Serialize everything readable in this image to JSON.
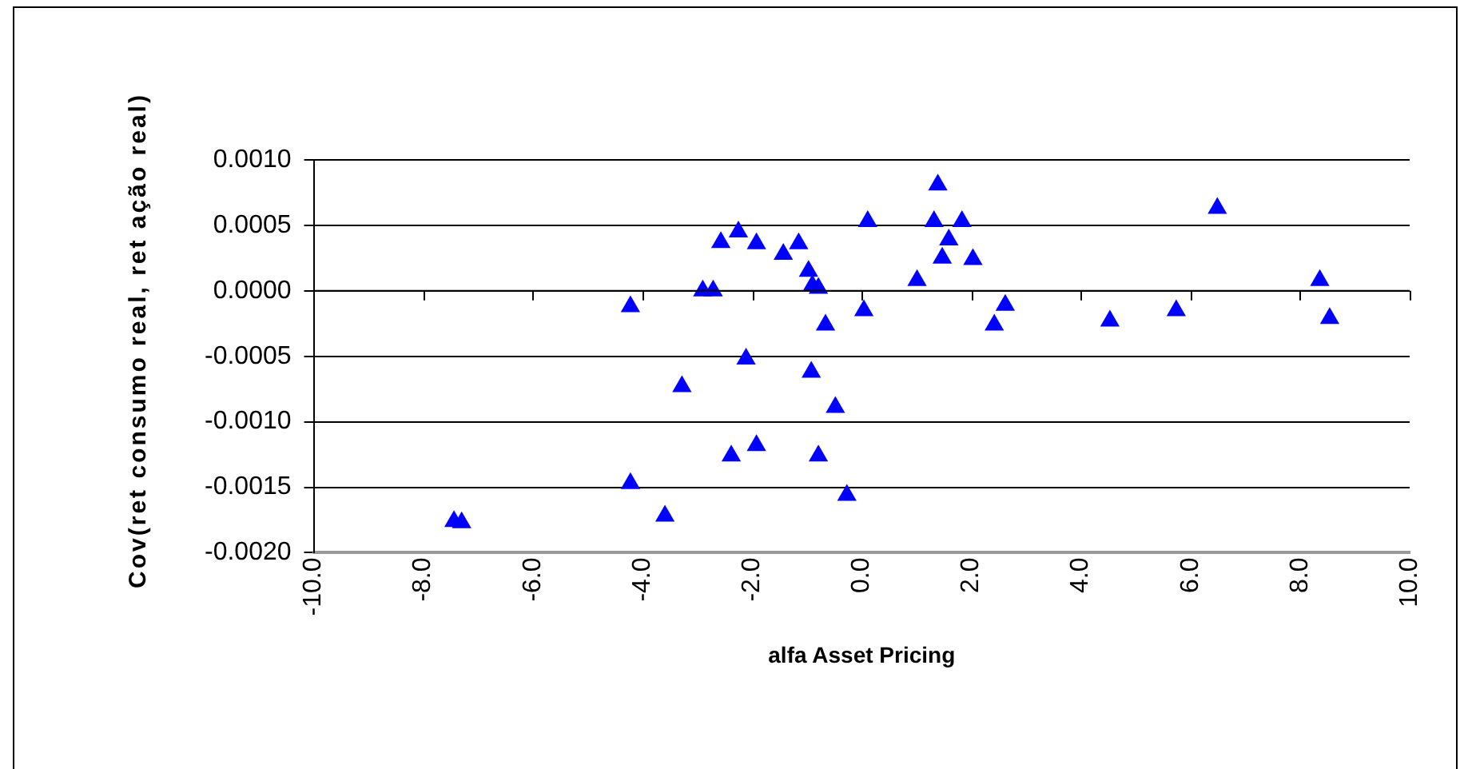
{
  "chart_data": {
    "type": "scatter",
    "xlabel": "alfa Asset Pricing",
    "ylabel": "Cov(ret consumo real, ret ação real)",
    "series": [
      {
        "color": "#0000ff",
        "x": [
          -7.44,
          -7.3,
          -4.22,
          -4.22,
          -3.59,
          -3.28,
          -2.9,
          -2.71,
          -2.57,
          -2.25,
          -2.38,
          -2.11,
          -1.92,
          -1.92,
          -1.43,
          -1.15,
          -0.97,
          -0.9,
          -0.79,
          -0.92,
          -0.79,
          -0.66,
          -0.48,
          -0.27,
          0.04,
          0.11,
          1.01,
          1.32,
          1.39,
          1.47,
          1.59,
          1.83,
          2.03,
          2.42,
          2.62,
          4.53,
          5.74,
          6.49,
          8.36,
          8.54
        ],
        "values": [
          -0.00176,
          -0.00177,
          -0.00012,
          -0.00147,
          -0.00172,
          -0.00073,
          0.0,
          0.0,
          0.00037,
          0.00045,
          -0.00126,
          -0.00052,
          0.00036,
          -0.00118,
          0.00028,
          0.00036,
          0.00015,
          4e-05,
          2e-05,
          -0.00062,
          -0.00126,
          -0.00026,
          -0.00089,
          -0.00156,
          -0.00015,
          0.00053,
          8e-05,
          0.00053,
          0.00081,
          0.00025,
          0.00039,
          0.00053,
          0.00024,
          -0.00026,
          -0.00011,
          -0.00023,
          -0.00015,
          0.00063,
          8e-05,
          -0.00021
        ]
      }
    ],
    "xlim": [
      -10,
      10
    ],
    "xticks": [
      {
        "value": -10,
        "label": "-10.0"
      },
      {
        "value": -8,
        "label": "-8.0"
      },
      {
        "value": -6,
        "label": "-6.0"
      },
      {
        "value": -4,
        "label": "-4.0"
      },
      {
        "value": -2,
        "label": "-2.0"
      },
      {
        "value": 0,
        "label": "0.0"
      },
      {
        "value": 2,
        "label": "2.0"
      },
      {
        "value": 4,
        "label": "4.0"
      },
      {
        "value": 6,
        "label": "6.0"
      },
      {
        "value": 8,
        "label": "8.0"
      },
      {
        "value": 10,
        "label": "10.0"
      }
    ],
    "ylim": [
      -0.002,
      0.001
    ],
    "yticks": [
      {
        "value": -0.002,
        "label": "-0.0020"
      },
      {
        "value": -0.0015,
        "label": "-0.0015"
      },
      {
        "value": -0.001,
        "label": "-0.0010"
      },
      {
        "value": -0.0005,
        "label": "-0.0005"
      },
      {
        "value": 0,
        "label": "0.0000"
      },
      {
        "value": 0.0005,
        "label": "0.0005"
      },
      {
        "value": 0.001,
        "label": "0.0010"
      }
    ],
    "grid": "y",
    "legend": false,
    "marker": "triangle"
  }
}
